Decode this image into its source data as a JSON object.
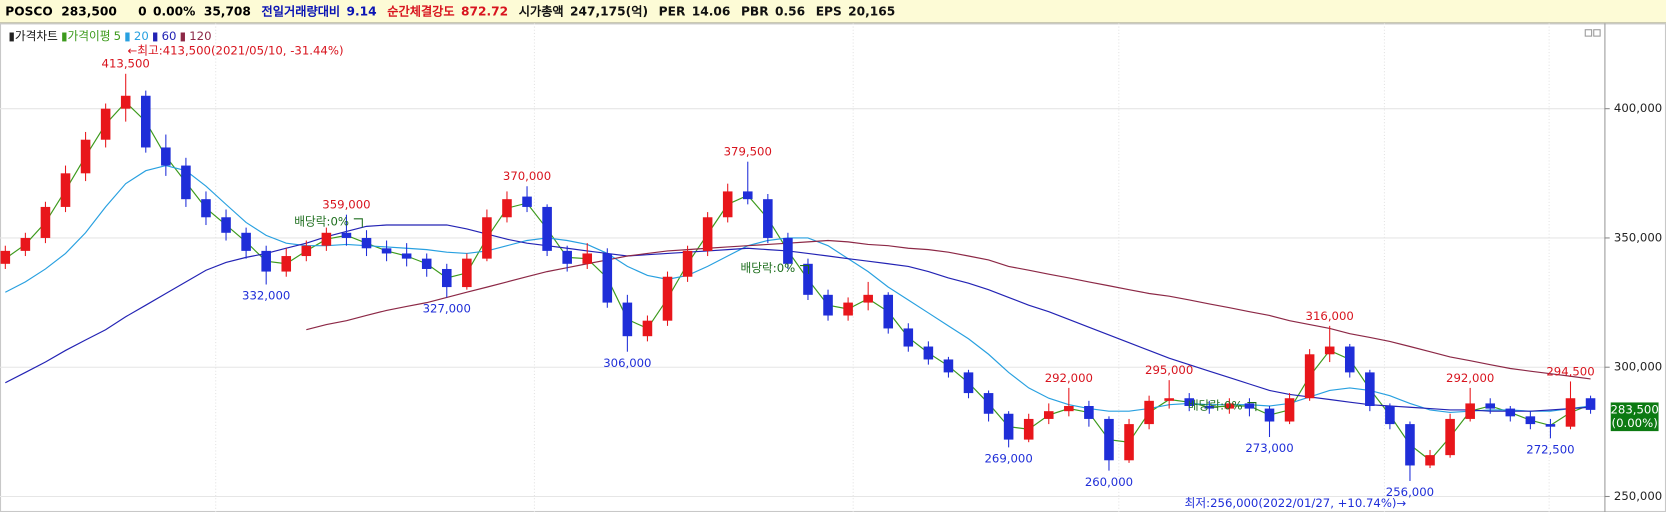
{
  "header": {
    "name": "POSCO",
    "price": "283,500",
    "change": "0",
    "change_pct": "0.00%",
    "volume": "35,708",
    "items": [
      {
        "label": "전일거래량대비",
        "value": "9.14",
        "color": "#0a14b4"
      },
      {
        "label": "순간체결강도",
        "value": "872.72",
        "color": "#d8141e"
      },
      {
        "label": "시가총액",
        "value": "247,175(억)",
        "color": "#111111"
      },
      {
        "label": "PER",
        "value": "14.06",
        "color": "#111111"
      },
      {
        "label": "PBR",
        "value": "0.56",
        "color": "#111111"
      },
      {
        "label": "EPS",
        "value": "20,165",
        "color": "#111111"
      }
    ]
  },
  "chart_data": {
    "type": "candlestick",
    "name": "가격차트",
    "ma_label": "가격이평",
    "up_color": "#e8161b",
    "down_color": "#1f2ed8",
    "ohlc": [
      [
        340000,
        347000,
        338000,
        345000
      ],
      [
        345000,
        352000,
        343000,
        350000
      ],
      [
        350000,
        364000,
        348000,
        362000
      ],
      [
        362000,
        378000,
        360000,
        375000
      ],
      [
        375000,
        391000,
        372000,
        388000
      ],
      [
        388000,
        402000,
        385000,
        400000
      ],
      [
        400000,
        413500,
        395000,
        405000
      ],
      [
        405000,
        407000,
        383000,
        385000
      ],
      [
        385000,
        390000,
        374000,
        378000
      ],
      [
        378000,
        381000,
        362000,
        365000
      ],
      [
        365000,
        368000,
        355000,
        358000
      ],
      [
        358000,
        361000,
        349000,
        352000
      ],
      [
        352000,
        354000,
        342000,
        345000
      ],
      [
        345000,
        347000,
        332000,
        337000
      ],
      [
        337000,
        346000,
        335000,
        343000
      ],
      [
        343000,
        349000,
        341000,
        347000
      ],
      [
        347000,
        354000,
        345000,
        352000
      ],
      [
        352000,
        359000,
        347000,
        350000
      ],
      [
        350000,
        353000,
        343000,
        346000
      ],
      [
        346000,
        349000,
        341000,
        344000
      ],
      [
        344000,
        348000,
        339000,
        342000
      ],
      [
        342000,
        344000,
        335000,
        338000
      ],
      [
        338000,
        340000,
        327000,
        331000
      ],
      [
        331000,
        344000,
        330000,
        342000
      ],
      [
        342000,
        361000,
        341000,
        358000
      ],
      [
        358000,
        368000,
        356000,
        365000
      ],
      [
        366000,
        370000,
        360000,
        362000
      ],
      [
        362000,
        363000,
        343000,
        345000
      ],
      [
        345000,
        347000,
        337000,
        340000
      ],
      [
        340000,
        348000,
        338000,
        344000
      ],
      [
        344000,
        346000,
        323000,
        325000
      ],
      [
        325000,
        328000,
        306000,
        312000
      ],
      [
        312000,
        320000,
        310000,
        318000
      ],
      [
        318000,
        337000,
        316000,
        335000
      ],
      [
        335000,
        347000,
        333000,
        345000
      ],
      [
        345000,
        360000,
        343000,
        358000
      ],
      [
        358000,
        371000,
        356000,
        368000
      ],
      [
        368000,
        379500,
        363000,
        365000
      ],
      [
        365000,
        367000,
        348000,
        350000
      ],
      [
        350000,
        352000,
        338000,
        340000
      ],
      [
        340000,
        342000,
        326000,
        328000
      ],
      [
        328000,
        330000,
        318000,
        320000
      ],
      [
        320000,
        327000,
        318000,
        325000
      ],
      [
        325000,
        333000,
        322000,
        328000
      ],
      [
        328000,
        329000,
        313000,
        315000
      ],
      [
        315000,
        317000,
        306000,
        308000
      ],
      [
        308000,
        310000,
        301000,
        303000
      ],
      [
        303000,
        304000,
        296000,
        298000
      ],
      [
        298000,
        299000,
        288000,
        290000
      ],
      [
        290000,
        291000,
        279000,
        282000
      ],
      [
        282000,
        283000,
        269000,
        272000
      ],
      [
        272000,
        282000,
        271000,
        280000
      ],
      [
        280000,
        286000,
        278000,
        283000
      ],
      [
        283000,
        292000,
        281000,
        285000
      ],
      [
        285000,
        287000,
        277000,
        280000
      ],
      [
        280000,
        281000,
        260000,
        264000
      ],
      [
        264000,
        280000,
        263000,
        278000
      ],
      [
        278000,
        289000,
        276000,
        287000
      ],
      [
        287000,
        295000,
        284000,
        288000
      ],
      [
        288000,
        290000,
        283000,
        285000
      ],
      [
        285000,
        287000,
        282000,
        284000
      ],
      [
        284000,
        288000,
        282000,
        286000
      ],
      [
        286000,
        288000,
        281000,
        284000
      ],
      [
        284000,
        285000,
        273000,
        279000
      ],
      [
        279000,
        290000,
        278000,
        288000
      ],
      [
        288000,
        307000,
        287000,
        305000
      ],
      [
        305000,
        316000,
        302000,
        308000
      ],
      [
        308000,
        309000,
        296000,
        298000
      ],
      [
        298000,
        299000,
        283000,
        285000
      ],
      [
        285000,
        286000,
        276000,
        278000
      ],
      [
        278000,
        279000,
        256000,
        262000
      ],
      [
        262000,
        268000,
        261000,
        266000
      ],
      [
        266000,
        282000,
        265000,
        280000
      ],
      [
        280000,
        292000,
        279000,
        286000
      ],
      [
        286000,
        288000,
        282000,
        284000
      ],
      [
        284000,
        285000,
        279000,
        281000
      ],
      [
        281000,
        283000,
        276000,
        278000
      ],
      [
        278000,
        280000,
        272500,
        277000
      ],
      [
        277000,
        294500,
        276000,
        288000
      ],
      [
        288000,
        289000,
        282000,
        283500
      ]
    ],
    "series": [
      {
        "name": "5",
        "color": "#3c9a1c",
        "values": [
          342000,
          347500,
          356000,
          368500,
          381500,
          394000,
          402500,
          395000,
          381500,
          371500,
          361500,
          355000,
          348500,
          341000,
          340000,
          345000,
          349500,
          351000,
          348000,
          345000,
          343000,
          340000,
          334500,
          336500,
          350000,
          361500,
          363500,
          353500,
          342500,
          342000,
          334500,
          318500,
          315000,
          326500,
          340000,
          351500,
          363000,
          366500,
          357500,
          345000,
          334000,
          324000,
          322500,
          326500,
          321500,
          311500,
          305500,
          300500,
          294000,
          286000,
          277000,
          276000,
          281500,
          284000,
          282500,
          272000,
          271000,
          282500,
          287500,
          286500,
          284500,
          285000,
          285000,
          281500,
          283500,
          296500,
          306500,
          303000,
          291500,
          281500,
          270000,
          264000,
          273000,
          283000,
          285000,
          282500,
          279500,
          277500,
          282500,
          285500
        ]
      },
      {
        "name": "20",
        "color": "#28a0e0",
        "values": [
          329000,
          333000,
          338000,
          344000,
          352000,
          362000,
          371000,
          376000,
          378000,
          376000,
          370000,
          363000,
          356000,
          351000,
          348000,
          347000,
          347000,
          347500,
          347000,
          346500,
          346000,
          345500,
          344500,
          344000,
          345000,
          347000,
          349000,
          350000,
          349000,
          347500,
          344000,
          339000,
          335500,
          334000,
          335500,
          339000,
          343000,
          347000,
          349000,
          350000,
          350000,
          347000,
          342000,
          337000,
          331000,
          326000,
          321000,
          316000,
          311000,
          305000,
          298000,
          292000,
          288000,
          285500,
          284000,
          283000,
          283000,
          284000,
          285500,
          286000,
          285500,
          285500,
          285500,
          285000,
          286000,
          288500,
          291000,
          292000,
          291000,
          289000,
          286000,
          283500,
          282500,
          283000,
          283500,
          283500,
          283000,
          283000,
          284000,
          285000
        ]
      },
      {
        "name": "60",
        "color": "#2323b4",
        "values": [
          294000,
          298000,
          302000,
          306500,
          310500,
          314500,
          319500,
          324000,
          328500,
          333000,
          337500,
          340500,
          342500,
          344000,
          346000,
          348000,
          350500,
          352500,
          354500,
          355000,
          355000,
          355000,
          355000,
          353500,
          351500,
          349500,
          348000,
          347000,
          346000,
          345000,
          344000,
          343000,
          343500,
          344000,
          344500,
          345000,
          345500,
          346000,
          345500,
          345000,
          344000,
          343000,
          342000,
          341000,
          340000,
          339000,
          337000,
          334500,
          332500,
          330000,
          327000,
          324000,
          321500,
          318500,
          315500,
          312500,
          309500,
          306500,
          303500,
          301000,
          298500,
          296000,
          293500,
          291000,
          289500,
          288500,
          287500,
          286500,
          285500,
          285000,
          284500,
          284000,
          283500,
          283500,
          283000,
          283000,
          283000,
          283500,
          284000,
          284500
        ]
      },
      {
        "name": "120",
        "color": "#8c2846",
        "values": [
          null,
          null,
          null,
          null,
          null,
          null,
          null,
          null,
          null,
          null,
          null,
          null,
          null,
          null,
          null,
          314500,
          316500,
          318000,
          320000,
          322000,
          323500,
          325000,
          327000,
          329000,
          331000,
          333000,
          335000,
          337000,
          338500,
          340000,
          341500,
          343000,
          344000,
          345000,
          345500,
          346000,
          346500,
          347000,
          347500,
          348000,
          348500,
          349000,
          348500,
          347500,
          347000,
          346000,
          345500,
          344500,
          343000,
          341500,
          339000,
          337500,
          336000,
          334500,
          333000,
          331500,
          330000,
          328500,
          327500,
          326000,
          324500,
          323000,
          321500,
          320000,
          318000,
          316500,
          315000,
          313000,
          311500,
          310000,
          308000,
          306000,
          304000,
          302500,
          301000,
          299500,
          298500,
          297500,
          296500,
          295500
        ]
      }
    ],
    "ylim": [
      244000,
      433000
    ],
    "yticks": [
      {
        "value": 250000,
        "label": "250,000"
      },
      {
        "value": 300000,
        "label": "300,000"
      },
      {
        "value": 350000,
        "label": "350,000"
      },
      {
        "value": 400000,
        "label": "400,000"
      }
    ],
    "grid": true,
    "high_labels": [
      {
        "value": 413500,
        "label": "413,500"
      },
      {
        "value": 359000,
        "label": "359,000"
      },
      {
        "value": 370000,
        "label": "370,000"
      },
      {
        "value": 379500,
        "label": "379,500"
      },
      {
        "value": 292000,
        "label": "292,000"
      },
      {
        "value": 295000,
        "label": "295,000"
      },
      {
        "value": 316000,
        "label": "316,000"
      },
      {
        "value": 292000,
        "label": "292,000"
      },
      {
        "value": 294500,
        "label": "294,500"
      }
    ],
    "low_labels": [
      {
        "value": 332000,
        "label": "332,000"
      },
      {
        "value": 327000,
        "label": "327,000"
      },
      {
        "value": 306000,
        "label": "306,000"
      },
      {
        "value": 269000,
        "label": "269,000"
      },
      {
        "value": 260000,
        "label": "260,000"
      },
      {
        "value": 273000,
        "label": "273,000"
      },
      {
        "value": 256000,
        "label": "256,000"
      },
      {
        "value": 272500,
        "label": "272,500"
      }
    ],
    "max_annotation": "←최고:413,500(2021/05/10, -31.44%)",
    "min_annotation": "최저:256,000(2022/01/27, +10.74%)→",
    "dividend_labels": [
      "배당락:0%",
      "배당락:0%",
      "배당락:0%"
    ],
    "last": {
      "value": 283500,
      "label": "283,500"
    },
    "last_change": "(0.00%)"
  }
}
